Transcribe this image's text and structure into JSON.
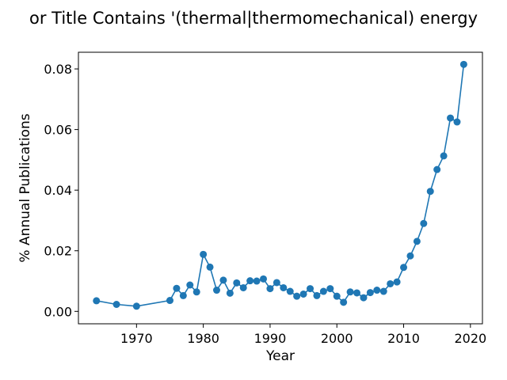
{
  "chart_data": {
    "type": "line",
    "title": "or Title Contains '(thermal|thermomechanical) energy",
    "xlabel": "Year",
    "ylabel": "% Annual Publications",
    "xlim": [
      1961.3,
      2021.8
    ],
    "ylim": [
      -0.0041,
      0.0855
    ],
    "x_ticks": [
      1970,
      1980,
      1990,
      2000,
      2010,
      2020
    ],
    "y_ticks": [
      0.0,
      0.02,
      0.04,
      0.06,
      0.08
    ],
    "y_tick_labels": [
      "0.00",
      "0.02",
      "0.04",
      "0.06",
      "0.08"
    ],
    "grid": false,
    "marker": "circle",
    "color": "#1f77b4",
    "series": [
      {
        "x": [
          1964,
          1967,
          1970,
          1975,
          1976,
          1977,
          1978,
          1979,
          1980,
          1981,
          1982,
          1983,
          1984,
          1985,
          1986,
          1987,
          1988,
          1989,
          1990,
          1991,
          1992,
          1993,
          1994,
          1995,
          1996,
          1997,
          1998,
          1999,
          2000,
          2001,
          2002,
          2003,
          2004,
          2005,
          2006,
          2007,
          2008,
          2009,
          2010,
          2011,
          2012,
          2013,
          2014,
          2015,
          2016,
          2017,
          2018,
          2019
        ],
        "y": [
          0.0035,
          0.0023,
          0.0017,
          0.0036,
          0.0076,
          0.0052,
          0.0087,
          0.0064,
          0.0188,
          0.0146,
          0.007,
          0.0103,
          0.006,
          0.0094,
          0.0078,
          0.0101,
          0.01,
          0.0107,
          0.0075,
          0.0095,
          0.0078,
          0.0066,
          0.005,
          0.0057,
          0.0075,
          0.0052,
          0.0066,
          0.0075,
          0.005,
          0.003,
          0.0064,
          0.0061,
          0.0045,
          0.0062,
          0.007,
          0.0066,
          0.0091,
          0.0097,
          0.0145,
          0.0183,
          0.0231,
          0.029,
          0.0396,
          0.0468,
          0.0513,
          0.0638,
          0.0625,
          0.0815
        ]
      }
    ]
  }
}
